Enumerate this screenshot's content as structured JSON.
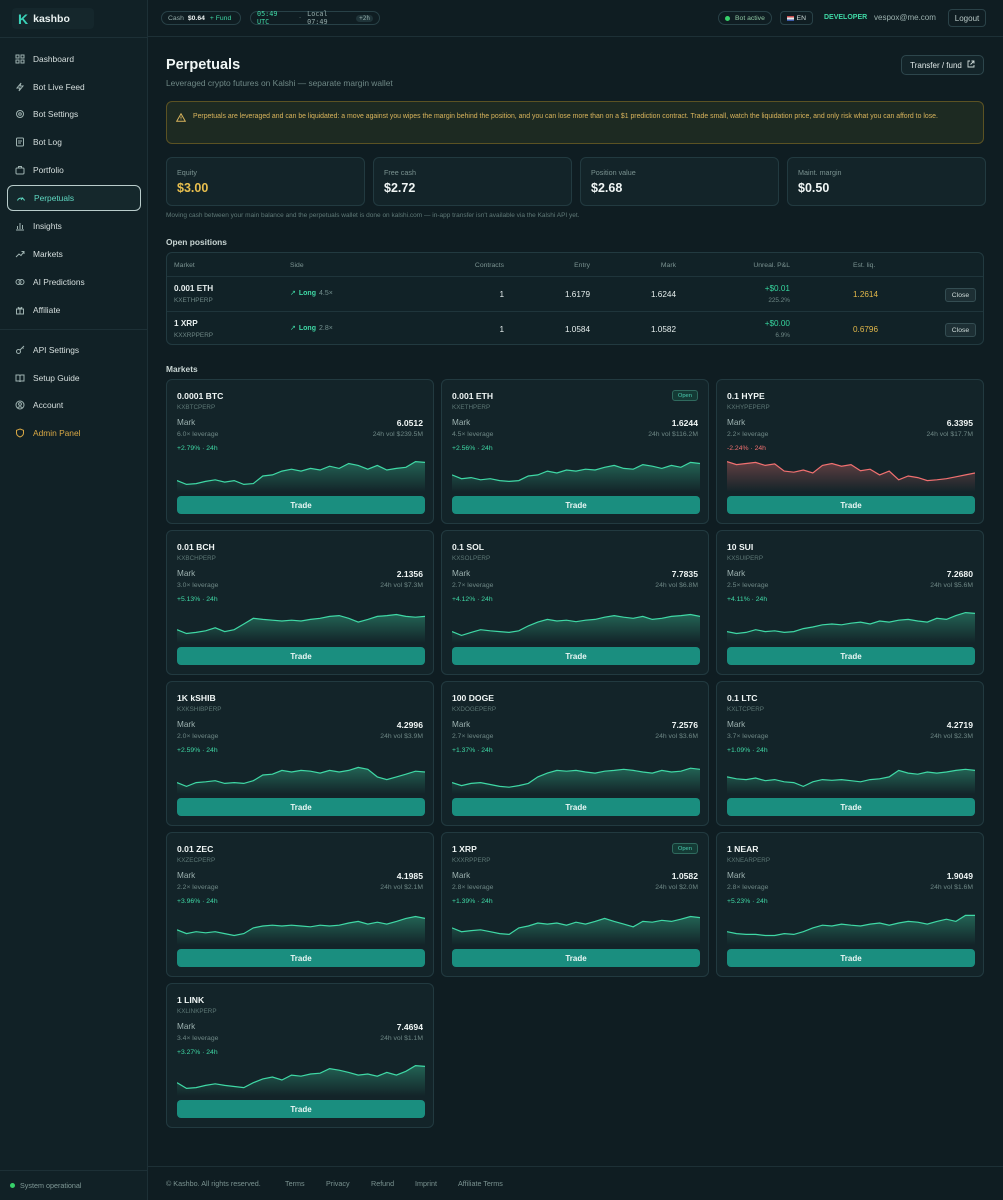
{
  "app": {
    "name": "kashbo"
  },
  "sidebar": {
    "items": [
      {
        "label": "Dashboard",
        "icon": "grid-icon"
      },
      {
        "label": "Bot Live Feed",
        "icon": "bolt-icon"
      },
      {
        "label": "Bot Settings",
        "icon": "gear-icon"
      },
      {
        "label": "Bot Log",
        "icon": "log-icon"
      },
      {
        "label": "Portfolio",
        "icon": "briefcase-icon"
      },
      {
        "label": "Perpetuals",
        "icon": "gauge-icon"
      },
      {
        "label": "Insights",
        "icon": "bar-chart-icon"
      },
      {
        "label": "Markets",
        "icon": "trend-icon"
      },
      {
        "label": "AI Predictions",
        "icon": "brain-icon"
      },
      {
        "label": "Affiliate",
        "icon": "gift-icon"
      },
      {
        "label": "API Settings",
        "icon": "key-icon"
      },
      {
        "label": "Setup Guide",
        "icon": "book-icon"
      },
      {
        "label": "Account",
        "icon": "user-circle-icon"
      },
      {
        "label": "Admin Panel",
        "icon": "shield-icon"
      }
    ],
    "status": "System operational"
  },
  "topbar": {
    "cash_label": "Cash",
    "cash_value": "$0.64",
    "fund_label": "+ Fund",
    "utc_time": "05:49 UTC",
    "local_time": "Local 07:49",
    "tz_offset": "+2h",
    "bot_status": "Bot active",
    "lang": "EN",
    "role": "DEVELOPER",
    "email": "vespox@me.com",
    "logout": "Logout"
  },
  "page": {
    "title": "Perpetuals",
    "subtitle": "Leveraged crypto futures on Kalshi — separate margin wallet",
    "transfer_button": "Transfer / fund",
    "warning": "Perpetuals are leveraged and can be liquidated: a move against you wipes the margin behind the position, and you can lose more than on a $1 prediction contract. Trade small, watch the liquidation price, and only risk what you can afford to lose.",
    "transfer_note": "Moving cash between your main balance and the perpetuals wallet is done on kalshi.com — in-app transfer isn't available via the Kalshi API yet."
  },
  "stats": [
    {
      "label": "Equity",
      "value": "$3.00"
    },
    {
      "label": "Free cash",
      "value": "$2.72"
    },
    {
      "label": "Position value",
      "value": "$2.68"
    },
    {
      "label": "Maint. margin",
      "value": "$0.50"
    }
  ],
  "positions": {
    "title": "Open positions",
    "headers": [
      "Market",
      "Side",
      "Contracts",
      "Entry",
      "Mark",
      "Unreal. P&L",
      "Est. liq."
    ],
    "rows": [
      {
        "market": "0.001 ETH",
        "ticker": "KXETHPERP",
        "side": "Long",
        "leverage": "4.5×",
        "contracts": "1",
        "entry": "1.6179",
        "mark": "1.6244",
        "pnl": "+$0.01",
        "pnl_pct": "225.2%",
        "liq": "1.2614",
        "action": "Close"
      },
      {
        "market": "1 XRP",
        "ticker": "KXXRPPERP",
        "side": "Long",
        "leverage": "2.8×",
        "contracts": "1",
        "entry": "1.0584",
        "mark": "1.0582",
        "pnl": "+$0.00",
        "pnl_pct": "6.9%",
        "liq": "0.6796",
        "action": "Close"
      }
    ]
  },
  "markets": {
    "title": "Markets",
    "mark_label": "Mark",
    "trade_label": "Trade",
    "open_badge": "Open",
    "items": [
      {
        "name": "0.0001 BTC",
        "ticker": "KXBTCPERP",
        "mark": "6.0512",
        "leverage": "6.0× leverage",
        "volume": "24h vol $239.5M",
        "change": "+2.79% · 24h",
        "up": true,
        "open": false,
        "spark": [
          0.3,
          0.2,
          0.22,
          0.28,
          0.32,
          0.26,
          0.3,
          0.2,
          0.22,
          0.42,
          0.45,
          0.55,
          0.6,
          0.55,
          0.62,
          0.58,
          0.68,
          0.62,
          0.75,
          0.7,
          0.6,
          0.7,
          0.58,
          0.62,
          0.65,
          0.8,
          0.78
        ]
      },
      {
        "name": "0.001 ETH",
        "ticker": "KXETHPERP",
        "mark": "1.6244",
        "leverage": "4.5× leverage",
        "volume": "24h vol $116.2M",
        "change": "+2.56% · 24h",
        "up": true,
        "open": true,
        "spark": [
          0.45,
          0.35,
          0.38,
          0.32,
          0.35,
          0.3,
          0.28,
          0.3,
          0.42,
          0.45,
          0.55,
          0.5,
          0.58,
          0.55,
          0.6,
          0.58,
          0.65,
          0.7,
          0.62,
          0.6,
          0.72,
          0.68,
          0.62,
          0.7,
          0.65,
          0.78,
          0.75
        ]
      },
      {
        "name": "0.1 HYPE",
        "ticker": "KXHYPEPERP",
        "mark": "6.3395",
        "leverage": "2.2× leverage",
        "volume": "24h vol $17.7M",
        "change": "-2.24% · 24h",
        "up": false,
        "open": false,
        "spark": [
          0.8,
          0.72,
          0.75,
          0.78,
          0.7,
          0.74,
          0.55,
          0.52,
          0.58,
          0.5,
          0.7,
          0.75,
          0.68,
          0.72,
          0.56,
          0.6,
          0.45,
          0.55,
          0.32,
          0.42,
          0.38,
          0.3,
          0.32,
          0.35,
          0.4,
          0.45,
          0.5
        ]
      },
      {
        "name": "0.01 BCH",
        "ticker": "KXBCHPERP",
        "mark": "2.1356",
        "leverage": "3.0× leverage",
        "volume": "24h vol $7.3M",
        "change": "+5.13% · 24h",
        "up": true,
        "open": false,
        "spark": [
          0.35,
          0.25,
          0.28,
          0.32,
          0.4,
          0.3,
          0.35,
          0.5,
          0.65,
          0.62,
          0.6,
          0.58,
          0.6,
          0.58,
          0.62,
          0.65,
          0.7,
          0.72,
          0.65,
          0.55,
          0.62,
          0.7,
          0.72,
          0.75,
          0.7,
          0.68,
          0.7
        ]
      },
      {
        "name": "0.1 SOL",
        "ticker": "KXSOLPERP",
        "mark": "7.7835",
        "leverage": "2.7× leverage",
        "volume": "24h vol $6.8M",
        "change": "+4.12% · 24h",
        "up": true,
        "open": false,
        "spark": [
          0.3,
          0.2,
          0.28,
          0.35,
          0.32,
          0.3,
          0.28,
          0.32,
          0.45,
          0.55,
          0.62,
          0.58,
          0.6,
          0.56,
          0.6,
          0.62,
          0.68,
          0.72,
          0.68,
          0.65,
          0.7,
          0.62,
          0.65,
          0.7,
          0.72,
          0.75,
          0.7
        ]
      },
      {
        "name": "10 SUI",
        "ticker": "KXSUIPERP",
        "mark": "7.2680",
        "leverage": "2.5× leverage",
        "volume": "24h vol $5.6M",
        "change": "+4.11% · 24h",
        "up": true,
        "open": false,
        "spark": [
          0.3,
          0.25,
          0.28,
          0.35,
          0.3,
          0.32,
          0.28,
          0.3,
          0.38,
          0.42,
          0.48,
          0.5,
          0.48,
          0.52,
          0.55,
          0.5,
          0.58,
          0.55,
          0.6,
          0.62,
          0.58,
          0.55,
          0.65,
          0.62,
          0.72,
          0.8,
          0.78
        ]
      },
      {
        "name": "1K kSHIB",
        "ticker": "KXKSHIBPERP",
        "mark": "4.2996",
        "leverage": "2.0× leverage",
        "volume": "24h vol $3.9M",
        "change": "+2.59% · 24h",
        "up": true,
        "open": false,
        "spark": [
          0.3,
          0.2,
          0.3,
          0.32,
          0.35,
          0.28,
          0.3,
          0.28,
          0.35,
          0.5,
          0.52,
          0.62,
          0.58,
          0.62,
          0.6,
          0.55,
          0.62,
          0.58,
          0.62,
          0.7,
          0.65,
          0.45,
          0.38,
          0.45,
          0.52,
          0.6,
          0.58
        ]
      },
      {
        "name": "100 DOGE",
        "ticker": "KXDOGEPERP",
        "mark": "7.2576",
        "leverage": "2.7× leverage",
        "volume": "24h vol $3.6M",
        "change": "+1.37% · 24h",
        "up": true,
        "open": false,
        "spark": [
          0.3,
          0.22,
          0.28,
          0.3,
          0.25,
          0.2,
          0.18,
          0.22,
          0.28,
          0.45,
          0.55,
          0.62,
          0.6,
          0.62,
          0.58,
          0.55,
          0.6,
          0.62,
          0.65,
          0.62,
          0.58,
          0.55,
          0.62,
          0.58,
          0.6,
          0.68,
          0.65
        ]
      },
      {
        "name": "0.1 LTC",
        "ticker": "KXLTCPERP",
        "mark": "4.2719",
        "leverage": "3.7× leverage",
        "volume": "24h vol $2.3M",
        "change": "+1.09% · 24h",
        "up": true,
        "open": false,
        "spark": [
          0.45,
          0.4,
          0.38,
          0.42,
          0.35,
          0.38,
          0.32,
          0.3,
          0.2,
          0.32,
          0.38,
          0.36,
          0.38,
          0.35,
          0.32,
          0.38,
          0.4,
          0.45,
          0.62,
          0.55,
          0.52,
          0.58,
          0.55,
          0.58,
          0.62,
          0.65,
          0.62
        ]
      },
      {
        "name": "0.01 ZEC",
        "ticker": "KXZECPERP",
        "mark": "4.1985",
        "leverage": "2.2× leverage",
        "volume": "24h vol $2.1M",
        "change": "+3.96% · 24h",
        "up": true,
        "open": false,
        "spark": [
          0.4,
          0.3,
          0.35,
          0.32,
          0.35,
          0.3,
          0.25,
          0.3,
          0.45,
          0.5,
          0.52,
          0.5,
          0.52,
          0.5,
          0.48,
          0.52,
          0.5,
          0.52,
          0.58,
          0.62,
          0.55,
          0.6,
          0.55,
          0.62,
          0.7,
          0.75,
          0.7
        ]
      },
      {
        "name": "1 XRP",
        "ticker": "KXXRPPERP",
        "mark": "1.0582",
        "leverage": "2.8× leverage",
        "volume": "24h vol $2.0M",
        "change": "+1.39% · 24h",
        "up": true,
        "open": true,
        "spark": [
          0.45,
          0.35,
          0.38,
          0.4,
          0.35,
          0.3,
          0.28,
          0.45,
          0.5,
          0.58,
          0.55,
          0.58,
          0.52,
          0.6,
          0.55,
          0.62,
          0.7,
          0.62,
          0.55,
          0.48,
          0.62,
          0.6,
          0.65,
          0.62,
          0.68,
          0.75,
          0.72
        ]
      },
      {
        "name": "1 NEAR",
        "ticker": "KXNEARPERP",
        "mark": "1.9049",
        "leverage": "2.8× leverage",
        "volume": "24h vol $1.6M",
        "change": "+5.23% · 24h",
        "up": true,
        "open": false,
        "spark": [
          0.35,
          0.3,
          0.28,
          0.28,
          0.25,
          0.25,
          0.3,
          0.28,
          0.35,
          0.45,
          0.52,
          0.5,
          0.55,
          0.52,
          0.5,
          0.55,
          0.58,
          0.52,
          0.58,
          0.62,
          0.6,
          0.55,
          0.62,
          0.68,
          0.62,
          0.78,
          0.78
        ]
      },
      {
        "name": "1 LINK",
        "ticker": "KXLINKPERP",
        "mark": "7.4694",
        "leverage": "3.4× leverage",
        "volume": "24h vol $1.1M",
        "change": "+3.27% · 24h",
        "up": true,
        "open": false,
        "spark": [
          0.35,
          0.2,
          0.22,
          0.28,
          0.32,
          0.28,
          0.25,
          0.22,
          0.35,
          0.45,
          0.5,
          0.42,
          0.55,
          0.52,
          0.58,
          0.6,
          0.72,
          0.68,
          0.62,
          0.55,
          0.58,
          0.52,
          0.62,
          0.55,
          0.65,
          0.8,
          0.78
        ]
      }
    ]
  },
  "footer": {
    "copyright": "© Kashbo. All rights reserved.",
    "links": [
      "Terms",
      "Privacy",
      "Refund",
      "Imprint",
      "Affiliate Terms"
    ]
  },
  "colors": {
    "accent": "#1a8e7f",
    "up": "#3fd8a5",
    "down": "#f07070",
    "warn": "#d9b45c",
    "bg": "#0f1d22"
  }
}
